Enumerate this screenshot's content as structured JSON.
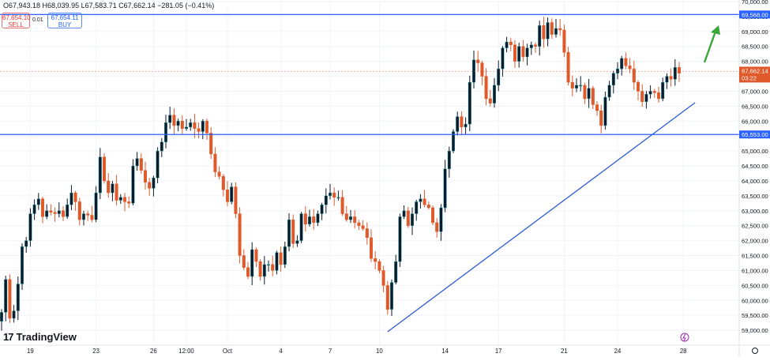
{
  "header": {
    "ohlc": "O67,943.18 H68,039.95 L67,583.71 C67,662.14 −281.05 (−0.41%)",
    "sell_price": "67,654.10",
    "sell_label": "SELL",
    "buy_price": "67,654.11",
    "buy_label": "BUY",
    "spread": "0.01"
  },
  "branding": {
    "logo_text": "TradingView"
  },
  "colors": {
    "up": "#26a69a",
    "up_body": "#0b1a2e",
    "down": "#e0592a",
    "level_line": "#2962ff",
    "trendline": "#2e5bd6",
    "arrow": "#3aa63a",
    "price_tag": "#e0592a"
  },
  "chart_data": {
    "type": "candlestick",
    "title": "",
    "y_axis": {
      "min": 58500,
      "max": 70000,
      "tick_step": 500,
      "position": "right",
      "tick_labels": [
        "59,000.00",
        "59,500.00",
        "60,000.00",
        "60,500.00",
        "61,000.00",
        "61,500.00",
        "62,000.00",
        "62,500.00",
        "63,000.00",
        "63,500.00",
        "64,000.00",
        "64,500.00",
        "65,000.00",
        "65,500.00",
        "66,000.00",
        "66,500.00",
        "67,000.00",
        "67,500.00",
        "68,000.00",
        "68,500.00",
        "69,000.00",
        "69,500.00",
        "70,000.00"
      ]
    },
    "x_axis": {
      "labels": [
        {
          "label": "19",
          "index": 7
        },
        {
          "label": "23",
          "index": 23
        },
        {
          "label": "26",
          "index": 37
        },
        {
          "label": "12:00",
          "index": 45
        },
        {
          "label": "Oct",
          "index": 55
        },
        {
          "label": "4",
          "index": 68
        },
        {
          "label": "7",
          "index": 80
        },
        {
          "label": "10",
          "index": 92
        },
        {
          "label": "14",
          "index": 108
        },
        {
          "label": "17",
          "index": 121
        },
        {
          "label": "21",
          "index": 137
        },
        {
          "label": "24",
          "index": 150
        },
        {
          "label": "28",
          "index": 166
        }
      ]
    },
    "close_series": [
      59600,
      60700,
      59400,
      59650,
      60550,
      61800,
      62000,
      62900,
      63200,
      63400,
      62800,
      63000,
      62950,
      62900,
      63000,
      62800,
      63200,
      63600,
      63300,
      62700,
      62900,
      62850,
      62700,
      63600,
      64800,
      64000,
      63600,
      63900,
      63350,
      63450,
      63300,
      63250,
      64500,
      64750,
      64350,
      63950,
      63750,
      64100,
      65000,
      65300,
      65950,
      66200,
      65850,
      66000,
      65750,
      65800,
      65950,
      65750,
      65650,
      66000,
      65600,
      64900,
      64300,
      64150,
      63700,
      63300,
      63800,
      62900,
      61500,
      61100,
      60800,
      61700,
      61300,
      60800,
      61200,
      61200,
      61000,
      61600,
      61200,
      61800,
      62700,
      61900,
      62000,
      62900,
      62550,
      62800,
      62600,
      62900,
      63200,
      63500,
      63600,
      63450,
      63450,
      62900,
      62700,
      62800,
      62600,
      62500,
      62400,
      62100,
      61400,
      61300,
      61000,
      60500,
      59700,
      60600,
      61300,
      62800,
      63000,
      62500,
      62900,
      63300,
      63400,
      63200,
      63100,
      62600,
      62300,
      63100,
      64400,
      65000,
      65650,
      66150,
      65800,
      65900,
      67300,
      68050,
      67950,
      67500,
      66750,
      66600,
      67200,
      67750,
      68450,
      68650,
      68550,
      68000,
      68500,
      68150,
      68450,
      68550,
      68500,
      69200,
      68750,
      69300,
      68900,
      69100,
      69050,
      68300,
      67300,
      67100,
      67200,
      67200,
      66750,
      67100,
      66550,
      66350,
      65850,
      66800,
      67200,
      67600,
      67750,
      68100,
      67850,
      67750,
      67300,
      67000,
      66650,
      66900,
      67000,
      66950,
      66750,
      67300,
      67500,
      67400,
      67800,
      67600
    ]
  },
  "levels": [
    {
      "label": "69,568.00",
      "value": 69568
    },
    {
      "label": "65,553.00",
      "value": 65553
    }
  ],
  "current_price": {
    "label": "67,662.14",
    "countdown": "03:22",
    "value": 67662.14
  },
  "trendline": {
    "from": {
      "index": 94,
      "value": 58950
    },
    "to": {
      "index": 166,
      "value": 66620
    }
  }
}
